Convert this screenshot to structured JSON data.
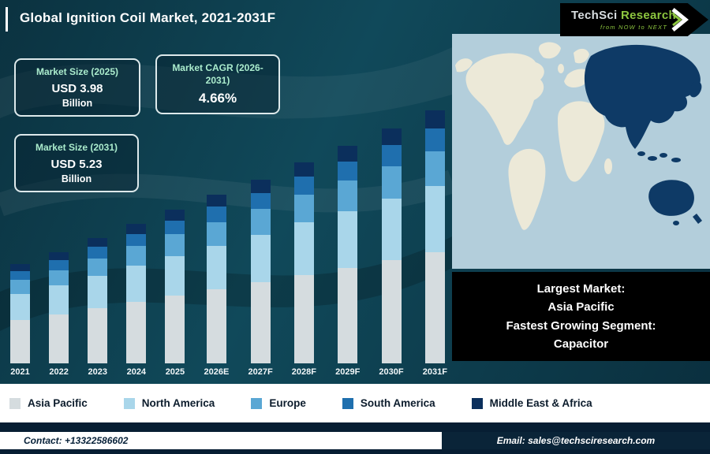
{
  "header": {
    "title": "Global Ignition Coil Market, 2021-2031F"
  },
  "logo": {
    "brand_primary": "TechSci",
    "brand_secondary": "Research",
    "tagline": "from NOW to NEXT",
    "brand_color": "#8dc63f"
  },
  "stats": [
    {
      "label": "Market Size (2025)",
      "value": "USD 3.98",
      "unit": "Billion"
    },
    {
      "label": "Market CAGR (2026-2031)",
      "value": "4.66%"
    },
    {
      "label": "Market Size (2031)",
      "value": "USD 5.23",
      "unit": "Billion"
    }
  ],
  "chart_data": {
    "type": "bar",
    "stacked": true,
    "title": "Global Ignition Coil Market, 2021-2031F",
    "unit": "USD Billion",
    "grid": false,
    "legend_position": "bottom",
    "categories": [
      "2021",
      "2022",
      "2023",
      "2024",
      "2025",
      "2026E",
      "2027F",
      "2028F",
      "2029F",
      "2030F",
      "2031F"
    ],
    "totals": [
      3.3,
      3.45,
      3.62,
      3.8,
      3.98,
      4.17,
      4.36,
      4.57,
      4.78,
      5.0,
      5.23
    ],
    "series": [
      {
        "name": "Asia Pacific",
        "color": "#d5dcdf",
        "values": [
          1.45,
          1.52,
          1.59,
          1.67,
          1.75,
          1.83,
          1.92,
          2.01,
          2.1,
          2.2,
          2.3
        ]
      },
      {
        "name": "North America",
        "color": "#a9d6ea",
        "values": [
          0.86,
          0.9,
          0.94,
          0.99,
          1.03,
          1.08,
          1.13,
          1.19,
          1.24,
          1.3,
          1.36
        ]
      },
      {
        "name": "Europe",
        "color": "#5aa7d4",
        "values": [
          0.46,
          0.48,
          0.51,
          0.53,
          0.56,
          0.58,
          0.61,
          0.64,
          0.67,
          0.7,
          0.73
        ]
      },
      {
        "name": "South America",
        "color": "#1f6fae",
        "values": [
          0.3,
          0.31,
          0.33,
          0.34,
          0.36,
          0.38,
          0.39,
          0.41,
          0.43,
          0.45,
          0.47
        ]
      },
      {
        "name": "Middle East & Africa",
        "color": "#0b2f5c",
        "values": [
          0.23,
          0.24,
          0.25,
          0.27,
          0.28,
          0.3,
          0.31,
          0.32,
          0.34,
          0.35,
          0.37
        ]
      }
    ]
  },
  "map_panel": {
    "highlight_region": "Asia Pacific",
    "ocean_color": "#b3cedb",
    "land_color": "#ece9d8",
    "highlight_color": "#0e3a66"
  },
  "callout": {
    "lines": [
      "Largest Market:",
      "Asia Pacific",
      "Fastest Growing Segment:",
      "Capacitor"
    ]
  },
  "footer": {
    "contact": "Contact: +13322586602",
    "email": "Email: sales@techsciresearch.com"
  }
}
